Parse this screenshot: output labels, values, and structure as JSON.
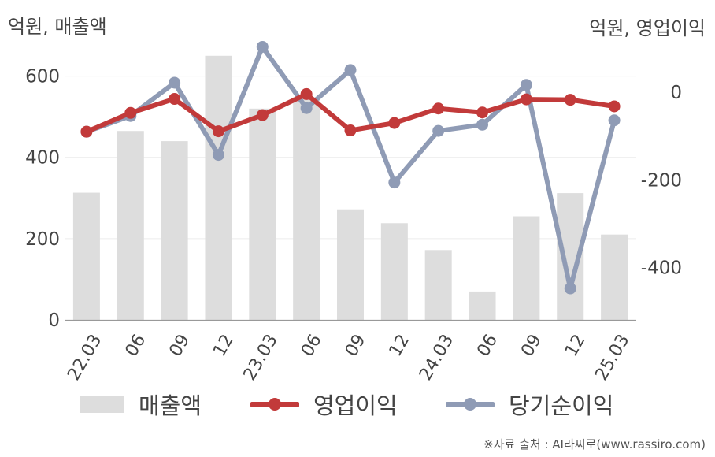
{
  "chart_data": {
    "type": "bar+line",
    "left_axis_label": "억원, 매출액",
    "right_axis_label": "억원, 영업이익",
    "categories": [
      "22.03",
      "06",
      "09",
      "12",
      "23.03",
      "06",
      "09",
      "12",
      "24.03",
      "06",
      "09",
      "12",
      "25.03"
    ],
    "left_axis": {
      "ylim": [
        0,
        700
      ],
      "ticks": [
        0,
        200,
        400,
        600
      ]
    },
    "right_axis": {
      "ylim": [
        -520,
        130
      ],
      "ticks": [
        0,
        -200,
        -400
      ]
    },
    "series": [
      {
        "name": "매출액",
        "type": "bar",
        "axis": "left",
        "color": "#dddddd",
        "values": [
          313,
          465,
          440,
          650,
          520,
          548,
          272,
          238,
          172,
          70,
          255,
          312,
          210
        ]
      },
      {
        "name": "영업이익",
        "type": "line",
        "axis": "right",
        "color": "#c23a3a",
        "values": [
          -90,
          -47,
          -15,
          -89,
          -52,
          -4,
          -87,
          -70,
          -37,
          -46,
          -16,
          -17,
          -32
        ]
      },
      {
        "name": "당기순이익",
        "type": "line",
        "axis": "right",
        "color": "#8f9bb5",
        "values": [
          -90,
          -54,
          22,
          -143,
          104,
          -36,
          51,
          -206,
          -88,
          -74,
          17,
          -448,
          -64
        ]
      }
    ],
    "grid": true,
    "legend_position": "bottom"
  },
  "source_text": "※자료 출처 : AI라씨로(www.rassiro.com)"
}
